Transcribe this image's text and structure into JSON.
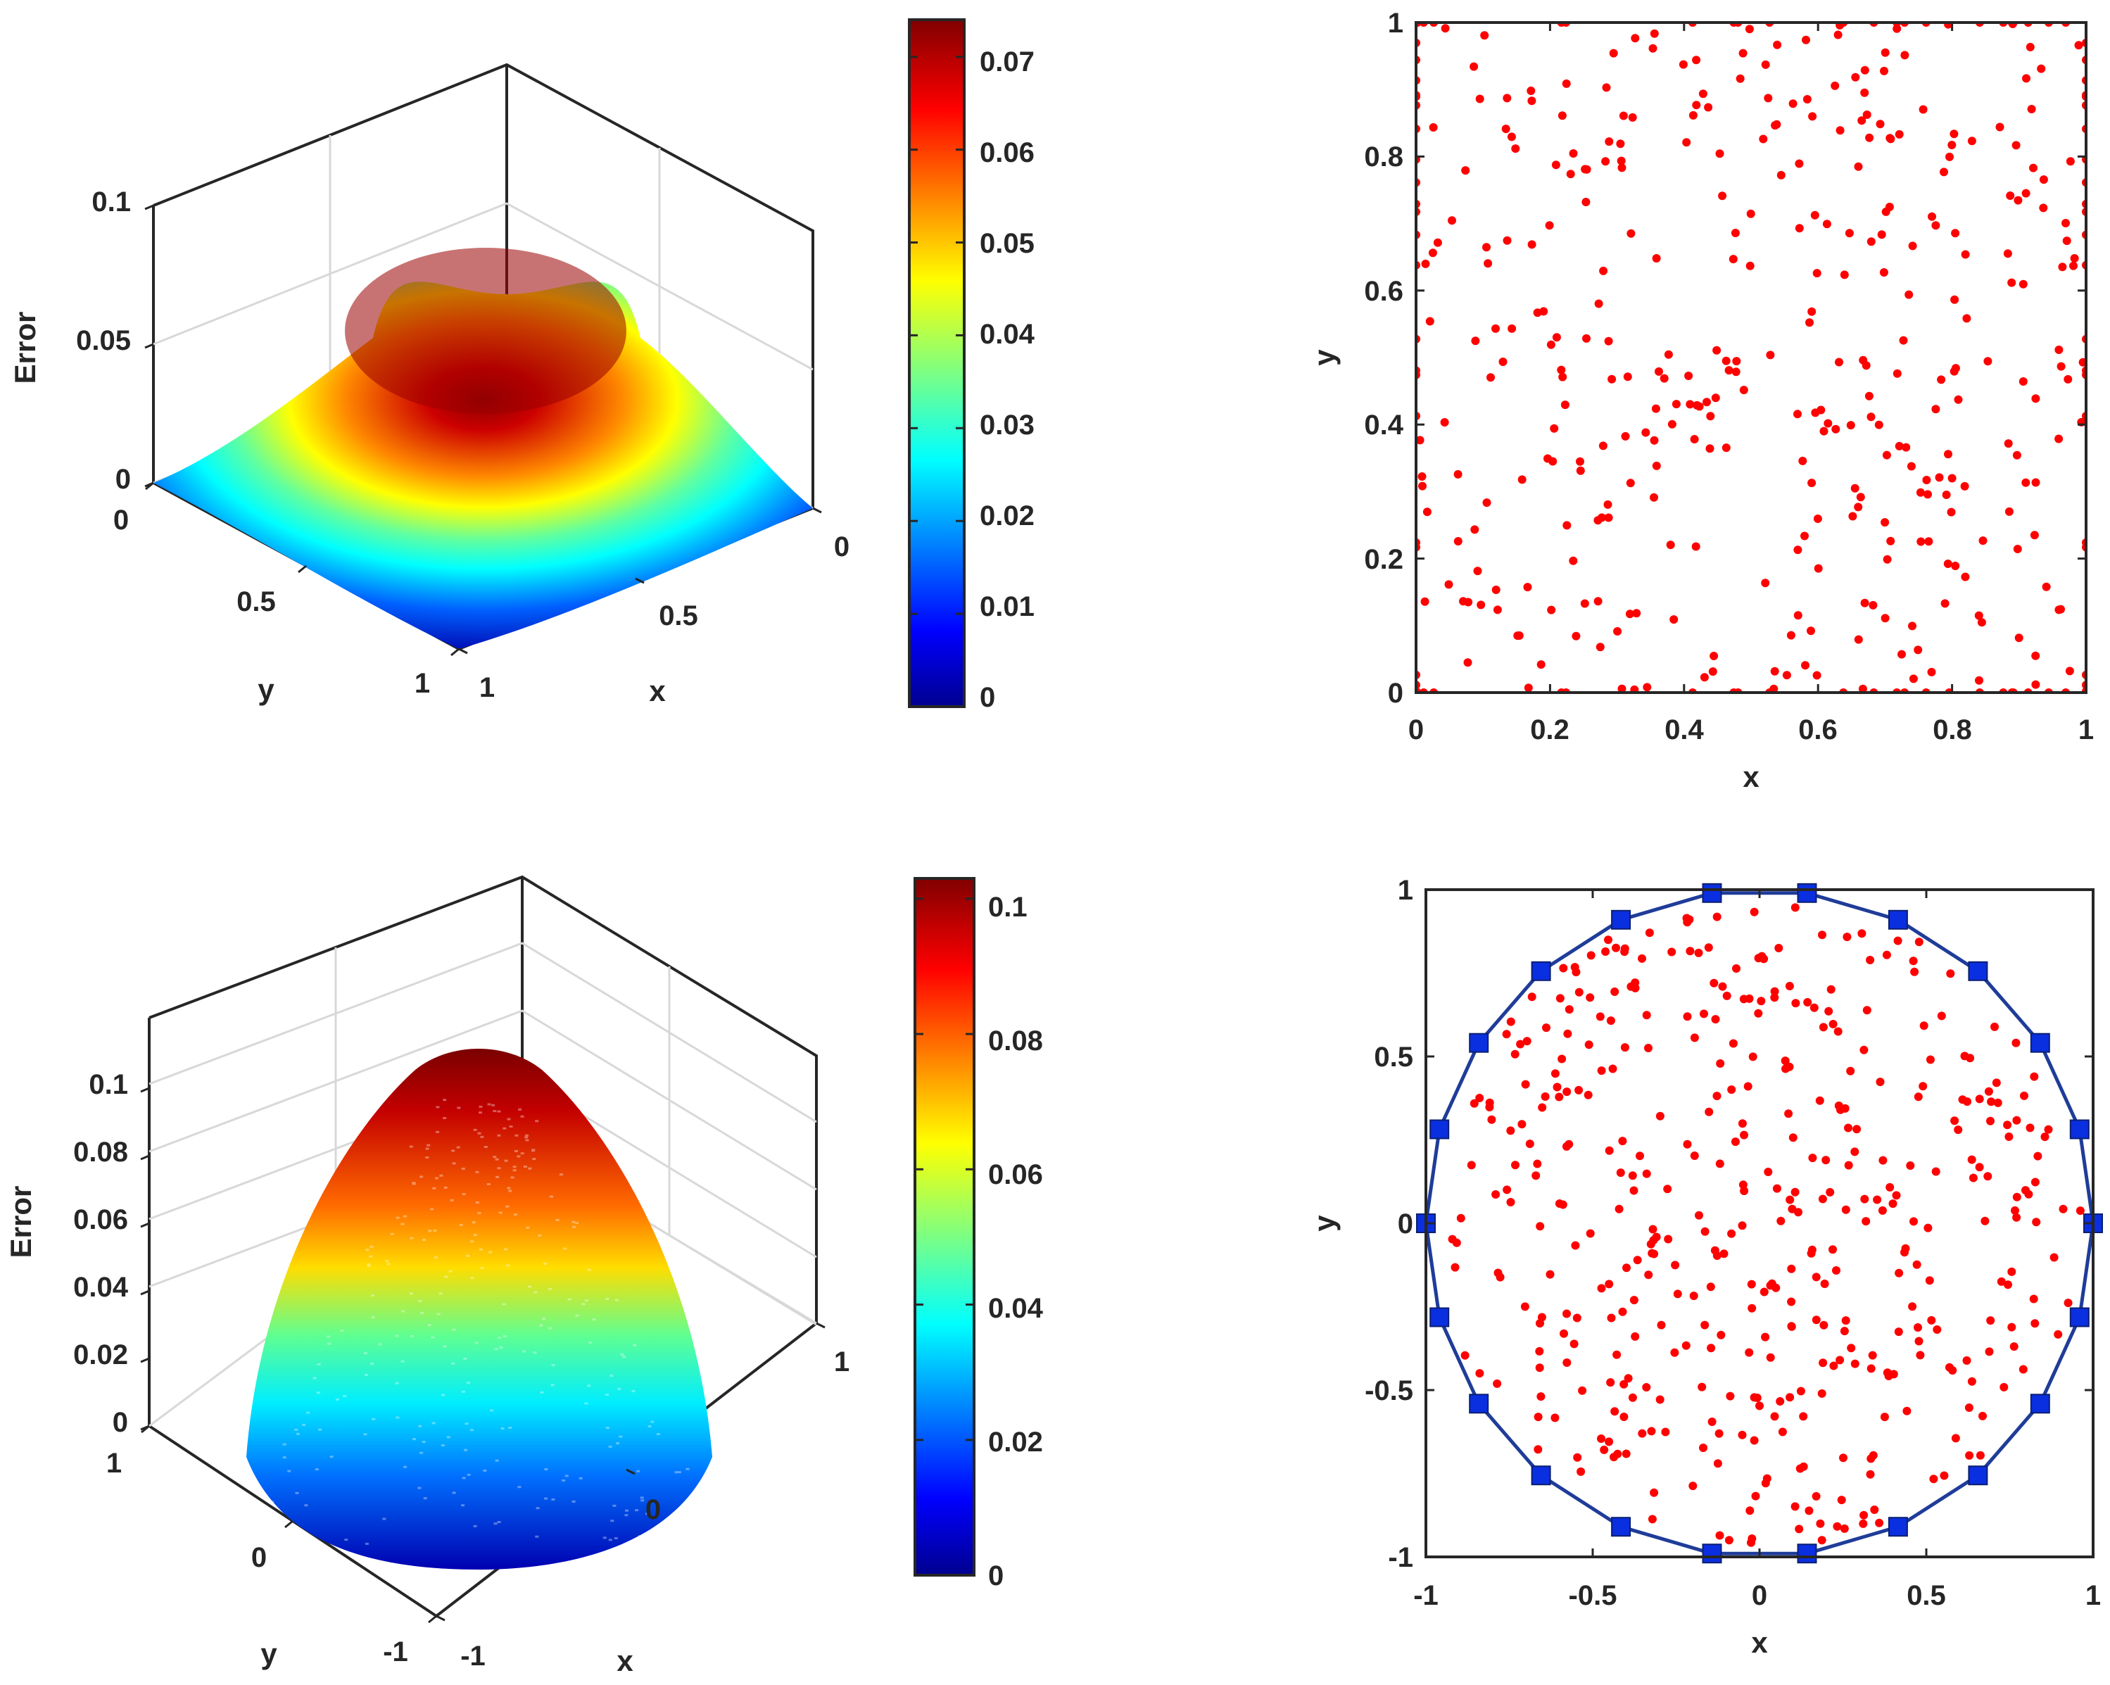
{
  "chart_data": [
    {
      "type": "surface3d",
      "panel": "top-left",
      "title": "",
      "xlabel": "x",
      "ylabel": "y",
      "zlabel": "Error",
      "x_range": [
        0,
        1
      ],
      "y_range": [
        0,
        1
      ],
      "z_range": [
        0,
        0.1
      ],
      "x_ticks": [
        "0",
        "0.5",
        "1"
      ],
      "y_ticks": [
        "0",
        "0.5",
        "1"
      ],
      "z_ticks": [
        "0",
        "0.05",
        "0.1"
      ],
      "surface": "bump over unit square, peak at center",
      "peak_value": 0.074,
      "colormap": "jet",
      "colorbar": {
        "range": [
          0,
          0.074
        ],
        "ticks": [
          "0",
          "0.01",
          "0.02",
          "0.03",
          "0.04",
          "0.05",
          "0.06",
          "0.07"
        ]
      }
    },
    {
      "type": "scatter",
      "panel": "top-right",
      "title": "",
      "xlabel": "x",
      "ylabel": "y",
      "xlim": [
        0,
        1
      ],
      "ylim": [
        0,
        1
      ],
      "x_ticks": [
        "0",
        "0.2",
        "0.4",
        "0.6",
        "0.8",
        "1"
      ],
      "y_ticks": [
        "0",
        "0.2",
        "0.4",
        "0.6",
        "0.8",
        "1"
      ],
      "marker_color": "#ff0000",
      "interior_point_count": 340,
      "boundary_points_per_side": 22,
      "point_distribution": "quasi-random scattered nodes in unit square plus boundary nodes"
    },
    {
      "type": "surface3d",
      "panel": "bottom-left",
      "title": "",
      "xlabel": "x",
      "ylabel": "y",
      "zlabel": "Error",
      "x_range": [
        -1,
        1
      ],
      "y_range": [
        -1,
        1
      ],
      "z_range": [
        0,
        0.12
      ],
      "x_ticks": [
        "-1",
        "0",
        "1"
      ],
      "y_ticks": [
        "-1",
        "0",
        "1"
      ],
      "z_ticks": [
        "0",
        "0.02",
        "0.04",
        "0.06",
        "0.08",
        "0.1"
      ],
      "surface": "paraboloid-like dome over unit disk, peak at center",
      "peak_value": 0.103,
      "colormap": "jet",
      "colorbar": {
        "range": [
          0,
          0.103
        ],
        "ticks": [
          "0",
          "0.02",
          "0.04",
          "0.06",
          "0.08",
          "0.1"
        ]
      }
    },
    {
      "type": "scatter",
      "panel": "bottom-right",
      "title": "",
      "xlabel": "x",
      "ylabel": "y",
      "xlim": [
        -1,
        1
      ],
      "ylim": [
        -1,
        1
      ],
      "x_ticks": [
        "-1",
        "-0.5",
        "0",
        "0.5",
        "1"
      ],
      "y_ticks": [
        "-1",
        "-0.5",
        "0",
        "0.5",
        "1"
      ],
      "marker_color": "#ff0000",
      "interior_point_count": 420,
      "boundary": {
        "type": "circle",
        "radius": 1,
        "line_color": "#1f3c99",
        "marker": "square",
        "marker_color": "#0a2fe0",
        "marker_count": 22,
        "start_angle_deg": 0
      }
    }
  ]
}
